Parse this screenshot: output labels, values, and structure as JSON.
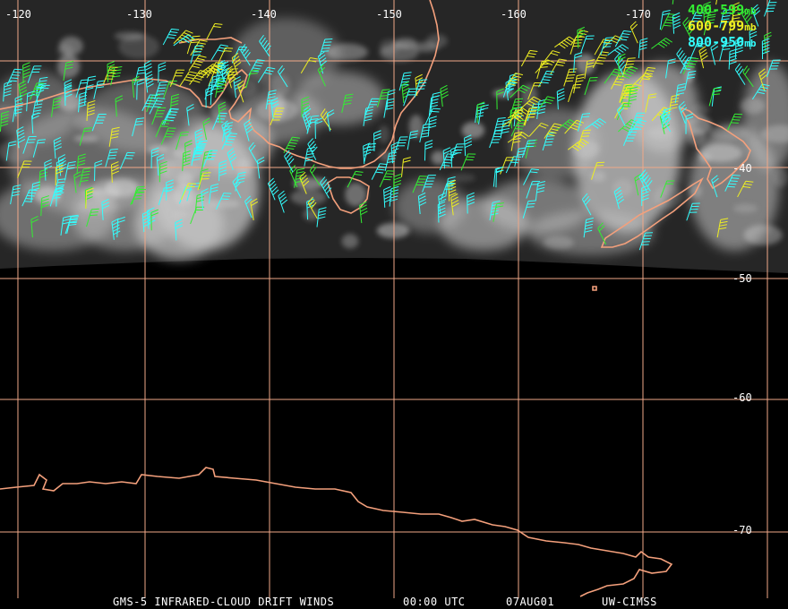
{
  "map": {
    "colors": {
      "grid": "#f0a888",
      "coast": "#f4a07c",
      "cloud": "#c8c8c8",
      "background": "#000000"
    },
    "longitude_labels": [
      "-120",
      "-130",
      "-140",
      "-150",
      "-160",
      "-170"
    ],
    "latitude_labels": [
      "-40",
      "-50",
      "-60",
      "-70"
    ]
  },
  "legend": [
    {
      "range": "400-599",
      "unit": "mb",
      "color": "#33ee33"
    },
    {
      "range": "600-799",
      "unit": "mb",
      "color": "#eeee22"
    },
    {
      "range": "800-950",
      "unit": "mb",
      "color": "#33ffff"
    }
  ],
  "footer": {
    "product": "GMS-5 INFRARED-CLOUD DRIFT WINDS",
    "time": "00:00 UTC",
    "date": "07AUG01",
    "source": "UW-CIMSS"
  }
}
